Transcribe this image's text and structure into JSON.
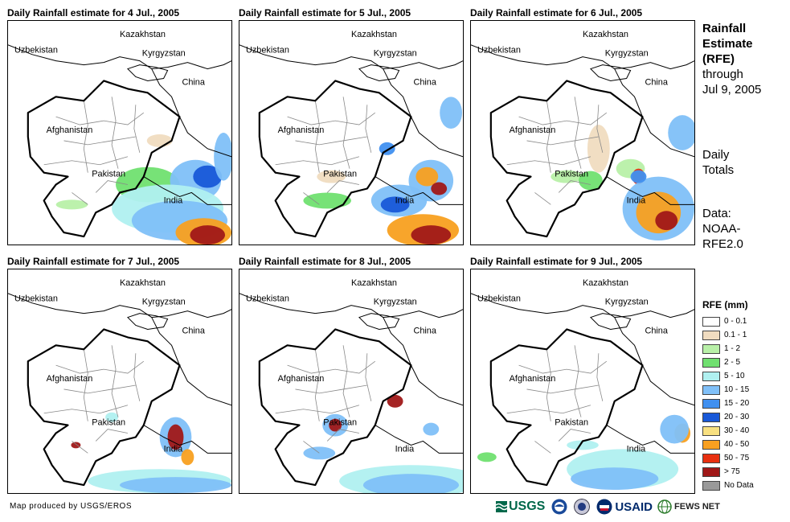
{
  "panels": [
    {
      "title": "Daily Rainfall estimate for 4 Jul., 2005"
    },
    {
      "title": "Daily Rainfall estimate for 5 Jul., 2005"
    },
    {
      "title": "Daily Rainfall estimate for 6 Jul., 2005"
    },
    {
      "title": "Daily Rainfall estimate for 7 Jul., 2005"
    },
    {
      "title": "Daily Rainfall estimate for 8 Jul., 2005"
    },
    {
      "title": "Daily Rainfall estimate for 9 Jul., 2005"
    }
  ],
  "map_labels": {
    "kazakhstan": "Kazakhstan",
    "uzbekistan": "Uzbekistan",
    "kyrgyzstan": "Kyrgyzstan",
    "china": "China",
    "afghanistan": "Afghanistan",
    "pakistan": "Pakistan",
    "india": "India"
  },
  "side": {
    "title_line1": "Rainfall",
    "title_line2": "Estimate",
    "title_line3": "(RFE)",
    "through_line1": "through",
    "through_line2": "Jul 9, 2005",
    "daily_line1": "Daily",
    "daily_line2": "Totals",
    "data_line1": "Data:",
    "data_line2": "NOAA-",
    "data_line3": "RFE2.0"
  },
  "legend": {
    "title": "RFE (mm)",
    "items": [
      {
        "label": "0 - 0.1",
        "color": "#ffffff"
      },
      {
        "label": "0.1 - 1",
        "color": "#f0dcc0"
      },
      {
        "label": "1 - 2",
        "color": "#b8f0a8"
      },
      {
        "label": "2 - 5",
        "color": "#70e070"
      },
      {
        "label": "5 - 10",
        "color": "#b0f0f0"
      },
      {
        "label": "10 - 15",
        "color": "#80c0f8"
      },
      {
        "label": "15 - 20",
        "color": "#4090f0"
      },
      {
        "label": "20 - 30",
        "color": "#1858d8"
      },
      {
        "label": "30 - 40",
        "color": "#f8e080"
      },
      {
        "label": "40 - 50",
        "color": "#f8a020"
      },
      {
        "label": "50 - 75",
        "color": "#e83010"
      },
      {
        "label": "> 75",
        "color": "#a01818"
      },
      {
        "label": "No Data",
        "color": "#999999"
      }
    ]
  },
  "footer": {
    "credit": "Map produced by USGS/EROS",
    "usgs": "USGS",
    "usaid": "USAID",
    "fews": "FEWS NET"
  }
}
